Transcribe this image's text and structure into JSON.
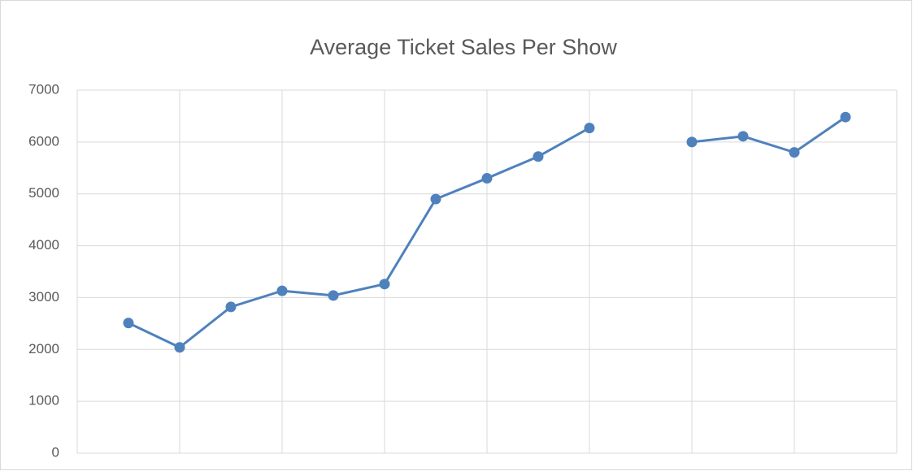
{
  "chart_data": {
    "type": "line",
    "title": "Average Ticket Sales Per Show",
    "categories": [
      null,
      null,
      null,
      null,
      null,
      null,
      null,
      null,
      null,
      null,
      null,
      null,
      null,
      null,
      null,
      null,
      null
    ],
    "series": [
      {
        "name": null,
        "color": "#4f81bd",
        "values": [
          null,
          2510,
          2040,
          2820,
          3130,
          3040,
          3260,
          4900,
          5300,
          5720,
          6270,
          null,
          6000,
          6110,
          5800,
          6480,
          null
        ]
      }
    ],
    "ylim": [
      0,
      7000
    ],
    "yticks": [
      0,
      1000,
      2000,
      3000,
      4000,
      5000,
      6000,
      7000
    ],
    "grid": true
  }
}
